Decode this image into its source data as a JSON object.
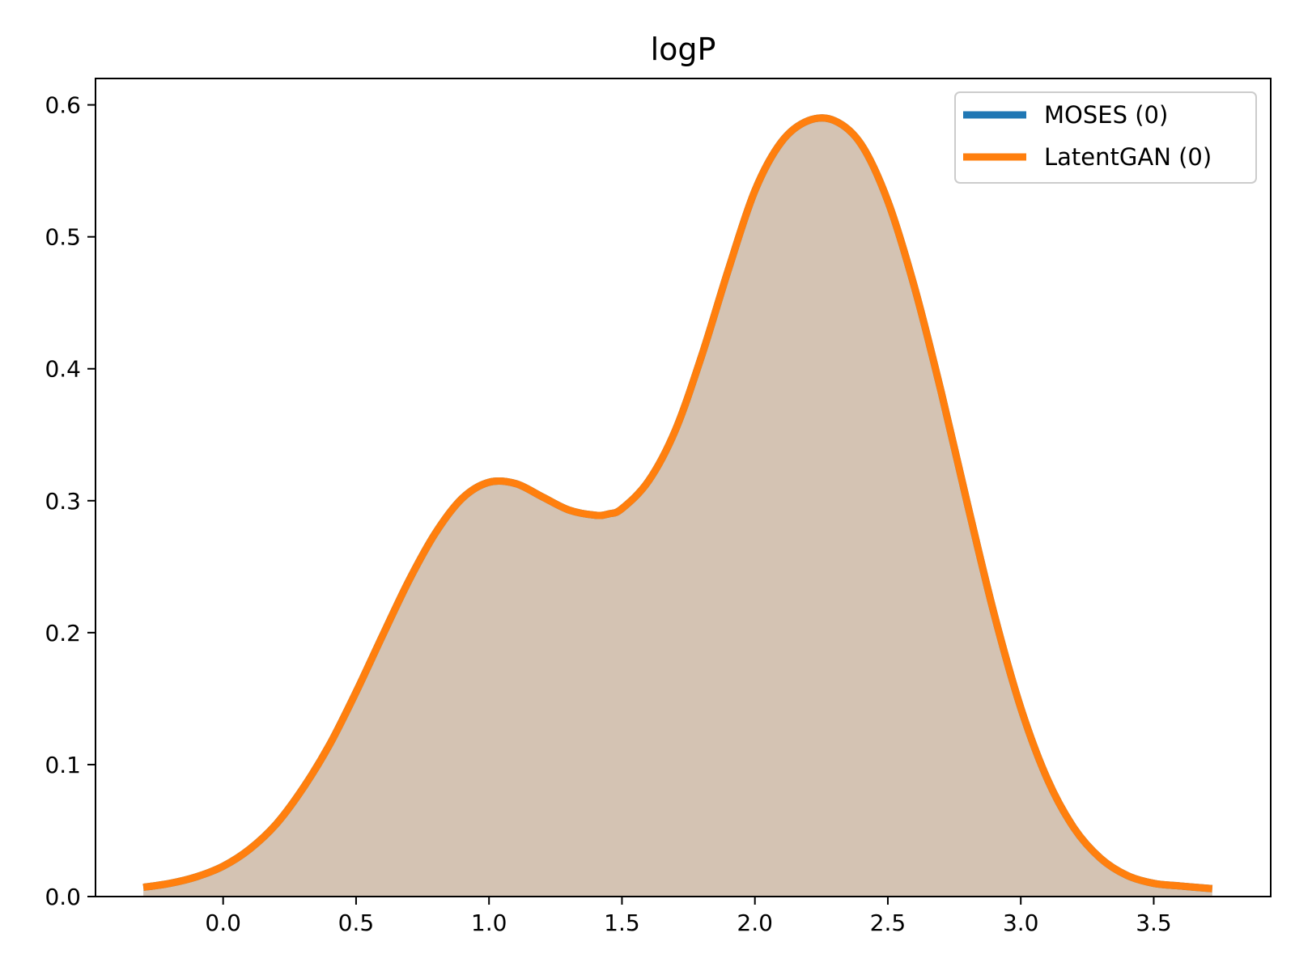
{
  "chart_data": {
    "type": "area",
    "title": "logP",
    "xlabel": "",
    "ylabel": "",
    "xlim": [
      -0.48,
      3.94
    ],
    "ylim": [
      0,
      0.62
    ],
    "xticks": [
      0.0,
      0.5,
      1.0,
      1.5,
      2.0,
      2.5,
      3.0,
      3.5
    ],
    "xtick_labels": [
      "0.0",
      "0.5",
      "1.0",
      "1.5",
      "2.0",
      "2.5",
      "3.0",
      "3.5"
    ],
    "yticks": [
      0.0,
      0.1,
      0.2,
      0.3,
      0.4,
      0.5,
      0.6
    ],
    "ytick_labels": [
      "0.0",
      "0.1",
      "0.2",
      "0.3",
      "0.4",
      "0.5",
      "0.6"
    ],
    "grid": false,
    "legend_position": "top-right",
    "x": [
      -0.3,
      -0.2,
      -0.1,
      0.0,
      0.1,
      0.2,
      0.3,
      0.4,
      0.5,
      0.6,
      0.7,
      0.8,
      0.9,
      1.0,
      1.1,
      1.2,
      1.3,
      1.4,
      1.45,
      1.5,
      1.6,
      1.7,
      1.8,
      1.9,
      2.0,
      2.1,
      2.2,
      2.3,
      2.4,
      2.5,
      2.6,
      2.7,
      2.8,
      2.9,
      3.0,
      3.1,
      3.2,
      3.3,
      3.4,
      3.5,
      3.6,
      3.72
    ],
    "series": [
      {
        "name": "MOSES (0)",
        "color": "#1f77b4",
        "values": [
          0.007,
          0.01,
          0.015,
          0.023,
          0.036,
          0.055,
          0.082,
          0.115,
          0.155,
          0.198,
          0.24,
          0.276,
          0.302,
          0.314,
          0.313,
          0.303,
          0.293,
          0.289,
          0.29,
          0.294,
          0.315,
          0.353,
          0.41,
          0.475,
          0.535,
          0.572,
          0.588,
          0.588,
          0.57,
          0.527,
          0.462,
          0.383,
          0.297,
          0.214,
          0.143,
          0.089,
          0.052,
          0.029,
          0.016,
          0.01,
          0.008,
          0.006
        ]
      },
      {
        "name": "LatentGAN (0)",
        "color": "#ff7f0e",
        "values": [
          0.007,
          0.01,
          0.015,
          0.023,
          0.036,
          0.055,
          0.082,
          0.115,
          0.155,
          0.198,
          0.24,
          0.276,
          0.302,
          0.314,
          0.313,
          0.303,
          0.293,
          0.289,
          0.29,
          0.294,
          0.315,
          0.353,
          0.41,
          0.475,
          0.535,
          0.572,
          0.588,
          0.588,
          0.57,
          0.527,
          0.462,
          0.383,
          0.297,
          0.214,
          0.143,
          0.089,
          0.052,
          0.029,
          0.016,
          0.01,
          0.008,
          0.006
        ]
      }
    ],
    "fill_color": "#d4c4b3"
  }
}
